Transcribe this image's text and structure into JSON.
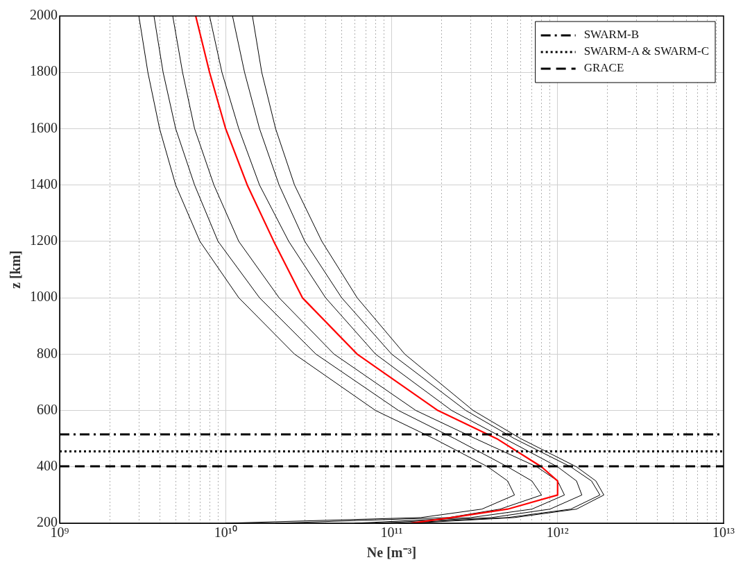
{
  "chart_data": {
    "type": "line",
    "xlabel": "Ne [m⁻³]",
    "ylabel": "z [km]",
    "log": "x",
    "grid": true,
    "legend": "top right",
    "xlim": [
      1000000000.0,
      10000000000000.0
    ],
    "ylim": [
      200,
      2000
    ],
    "xticks": [
      {
        "value": 1000000000.0,
        "label": "10⁹"
      },
      {
        "value": 2000000000.0,
        "label": null
      },
      {
        "value": 3000000000.0,
        "label": null
      },
      {
        "value": 4000000000.0,
        "label": null
      },
      {
        "value": 5000000000.0,
        "label": null
      },
      {
        "value": 6000000000.0,
        "label": null
      },
      {
        "value": 7000000000.0,
        "label": null
      },
      {
        "value": 8000000000.0,
        "label": null
      },
      {
        "value": 9000000000.0,
        "label": null
      },
      {
        "value": 10000000000.0,
        "label": "10¹⁰"
      },
      {
        "value": 20000000000.0,
        "label": null
      },
      {
        "value": 30000000000.0,
        "label": null
      },
      {
        "value": 40000000000.0,
        "label": null
      },
      {
        "value": 50000000000.0,
        "label": null
      },
      {
        "value": 60000000000.0,
        "label": null
      },
      {
        "value": 70000000000.0,
        "label": null
      },
      {
        "value": 80000000000.0,
        "label": null
      },
      {
        "value": 90000000000.0,
        "label": null
      },
      {
        "value": 100000000000.0,
        "label": "10¹¹"
      },
      {
        "value": 200000000000.0,
        "label": null
      },
      {
        "value": 300000000000.0,
        "label": null
      },
      {
        "value": 400000000000.0,
        "label": null
      },
      {
        "value": 500000000000.0,
        "label": null
      },
      {
        "value": 600000000000.0,
        "label": null
      },
      {
        "value": 700000000000.0,
        "label": null
      },
      {
        "value": 800000000000.0,
        "label": null
      },
      {
        "value": 900000000000.0,
        "label": null
      },
      {
        "value": 1000000000000.0,
        "label": "10¹²"
      },
      {
        "value": 2000000000000.0,
        "label": null
      },
      {
        "value": 3000000000000.0,
        "label": null
      },
      {
        "value": 4000000000000.0,
        "label": null
      },
      {
        "value": 5000000000000.0,
        "label": null
      },
      {
        "value": 6000000000000.0,
        "label": null
      },
      {
        "value": 7000000000000.0,
        "label": null
      },
      {
        "value": 8000000000000.0,
        "label": null
      },
      {
        "value": 9000000000000.0,
        "label": null
      },
      {
        "value": 10000000000000.0,
        "label": "10¹³"
      }
    ],
    "yticks": [
      200,
      400,
      600,
      800,
      1000,
      1200,
      1400,
      1600,
      1800,
      2000
    ],
    "series": [
      {
        "color": "#000000",
        "x": [
          10000000000.0,
          150000000000.0,
          350000000000.0,
          550000000000.0,
          500000000000.0,
          380000000000.0,
          180000000000.0,
          80000000000.0,
          26000000000.0,
          12000000000.0,
          7000000000.0,
          5000000000.0,
          4000000000.0,
          3400000000.0,
          3000000000.0
        ],
        "values": [
          200,
          220,
          250,
          300,
          350,
          400,
          500,
          600,
          800,
          1000,
          1200,
          1400,
          1600,
          1800,
          2000
        ]
      },
      {
        "color": "#000000",
        "x": [
          20000000000.0,
          220000000000.0,
          450000000000.0,
          800000000000.0,
          700000000000.0,
          500000000000.0,
          240000000000.0,
          110000000000.0,
          35000000000.0,
          16000000000.0,
          9000000000.0,
          6500000000.0,
          5000000000.0,
          4200000000.0,
          3700000000.0
        ],
        "values": [
          200,
          220,
          250,
          300,
          350,
          400,
          500,
          600,
          800,
          1000,
          1200,
          1400,
          1600,
          1800,
          2000
        ]
      },
      {
        "color": "#000000",
        "x": [
          60000000000.0,
          300000000000.0,
          700000000000.0,
          1100000000000.0,
          1000000000000.0,
          750000000000.0,
          320000000000.0,
          140000000000.0,
          45000000000.0,
          21000000000.0,
          12000000000.0,
          8500000000.0,
          6500000000.0,
          5500000000.0,
          4800000000.0
        ],
        "values": [
          200,
          220,
          250,
          300,
          350,
          400,
          500,
          600,
          800,
          1000,
          1200,
          1400,
          1600,
          1800,
          2000
        ]
      },
      {
        "color": "#000000",
        "x": [
          80000000000.0,
          400000000000.0,
          900000000000.0,
          1400000000000.0,
          1300000000000.0,
          1000000000000.0,
          480000000000.0,
          230000000000.0,
          80000000000.0,
          40000000000.0,
          24000000000.0,
          16000000000.0,
          12000000000.0,
          9500000000.0,
          8000000000.0
        ],
        "values": [
          200,
          220,
          250,
          300,
          350,
          400,
          500,
          600,
          800,
          1000,
          1200,
          1400,
          1600,
          1800,
          2000
        ]
      },
      {
        "color": "#000000",
        "x": [
          110000000000.0,
          500000000000.0,
          1200000000000.0,
          1800000000000.0,
          1600000000000.0,
          1200000000000.0,
          550000000000.0,
          280000000000.0,
          100000000000.0,
          50000000000.0,
          30000000000.0,
          21000000000.0,
          16000000000.0,
          13000000000.0,
          11000000000.0
        ],
        "values": [
          200,
          220,
          250,
          300,
          350,
          400,
          500,
          600,
          800,
          1000,
          1200,
          1400,
          1600,
          1800,
          2000
        ]
      },
      {
        "color": "#000000",
        "x": [
          130000000000.0,
          550000000000.0,
          1300000000000.0,
          1900000000000.0,
          1700000000000.0,
          1300000000000.0,
          600000000000.0,
          310000000000.0,
          120000000000.0,
          62000000000.0,
          38000000000.0,
          26000000000.0,
          20000000000.0,
          16500000000.0,
          14500000000.0
        ],
        "values": [
          200,
          220,
          250,
          300,
          350,
          400,
          500,
          600,
          800,
          1000,
          1200,
          1400,
          1600,
          1800,
          2000
        ]
      },
      {
        "color": "#ff0000",
        "x": [
          130000000000.0,
          230000000000.0,
          500000000000.0,
          1000000000000.0,
          1000000000000.0,
          800000000000.0,
          430000000000.0,
          190000000000.0,
          62000000000.0,
          29000000000.0,
          19500000000.0,
          13500000000.0,
          10000000000.0,
          8000000000.0,
          6600000000.0
        ],
        "values": [
          200,
          220,
          250,
          300,
          350,
          400,
          500,
          600,
          800,
          1000,
          1200,
          1400,
          1600,
          1800,
          2000
        ]
      }
    ],
    "ref_lines": [
      {
        "axis": "y",
        "value": 515,
        "label": "SWARM-B",
        "line_style": "dashdot",
        "color": "#000000"
      },
      {
        "axis": "y",
        "value": 455,
        "label": "SWARM-A & SWARM-C",
        "line_style": "dotted",
        "color": "#000000"
      },
      {
        "axis": "y",
        "value": 402,
        "label": "GRACE",
        "line_style": "dashed",
        "color": "#000000"
      }
    ]
  }
}
